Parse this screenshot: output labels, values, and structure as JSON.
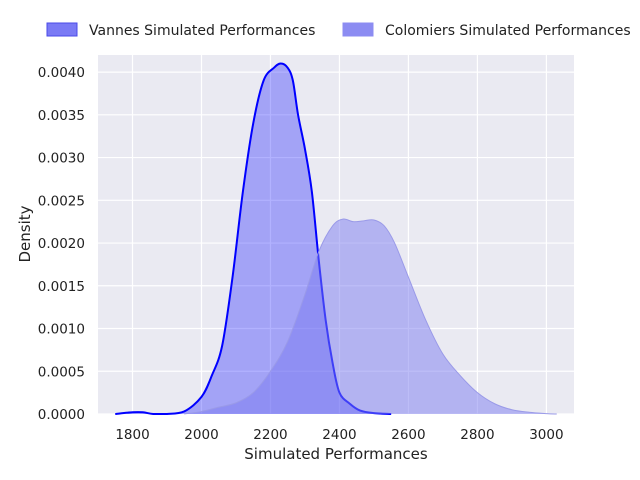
{
  "chart_data": {
    "type": "area",
    "xlabel": "Simulated Performances",
    "ylabel": "Density",
    "xlim": [
      1700,
      3080
    ],
    "ylim": [
      0,
      0.0042
    ],
    "xticks": [
      1800,
      2000,
      2200,
      2400,
      2600,
      2800,
      3000
    ],
    "yticks": [
      0.0,
      0.0005,
      0.001,
      0.0015,
      0.002,
      0.0025,
      0.003,
      0.0035,
      0.004
    ],
    "ytick_labels": [
      "0.0000",
      "0.0005",
      "0.0010",
      "0.0015",
      "0.0020",
      "0.0025",
      "0.0030",
      "0.0035",
      "0.0040"
    ],
    "grid": true,
    "legend_position": "top-center",
    "series": [
      {
        "name": "Vannes Simulated Performances",
        "color": "#0000ff",
        "x": [
          1750,
          1800,
          1830,
          1860,
          1900,
          1950,
          2000,
          2030,
          2060,
          2090,
          2120,
          2150,
          2180,
          2210,
          2230,
          2250,
          2265,
          2280,
          2300,
          2320,
          2340,
          2360,
          2380,
          2400,
          2430,
          2460,
          2500,
          2550
        ],
        "y": [
          0.0,
          2e-05,
          2e-05,
          0.0,
          0.0,
          3e-05,
          0.0002,
          0.00045,
          0.0008,
          0.0016,
          0.0026,
          0.0034,
          0.0039,
          0.00405,
          0.0041,
          0.00405,
          0.0039,
          0.0035,
          0.0031,
          0.0026,
          0.0018,
          0.0011,
          0.0006,
          0.00025,
          0.00012,
          4e-05,
          1e-05,
          0.0
        ]
      },
      {
        "name": "Colomiers Simulated Performances",
        "color": "#7b7bef",
        "x": [
          1950,
          2000,
          2050,
          2100,
          2150,
          2200,
          2250,
          2300,
          2340,
          2380,
          2410,
          2440,
          2470,
          2500,
          2530,
          2560,
          2600,
          2650,
          2700,
          2750,
          2800,
          2850,
          2900,
          2950,
          3000,
          3030
        ],
        "y": [
          0.0,
          3e-05,
          8e-05,
          0.00013,
          0.00025,
          0.0005,
          0.00085,
          0.0014,
          0.0019,
          0.0022,
          0.00228,
          0.00225,
          0.00226,
          0.00227,
          0.0022,
          0.002,
          0.0016,
          0.0011,
          0.0007,
          0.00045,
          0.00025,
          0.00012,
          5e-05,
          2e-05,
          5e-06,
          0.0
        ]
      }
    ]
  }
}
